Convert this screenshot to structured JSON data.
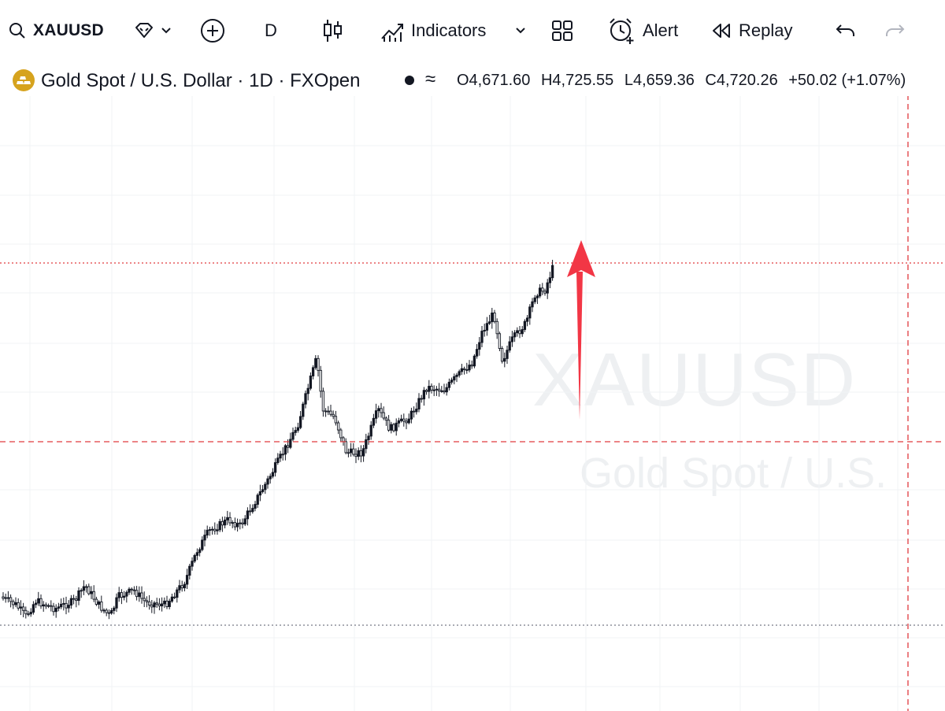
{
  "toolbar": {
    "symbol": "XAUUSD",
    "interval": "D",
    "indicators_label": "Indicators",
    "alert_label": "Alert",
    "replay_label": "Replay"
  },
  "legend": {
    "title": "Gold Spot / U.S. Dollar · 1D · FXOpen",
    "approx": "≈",
    "open": "O4,671.60",
    "high": "H4,725.55",
    "low": "L4,659.36",
    "close": "C4,720.26",
    "change": "+50.02 (+1.07%)"
  },
  "watermark": {
    "symbol": "XAUUSD",
    "name": "Gold Spot / U.S."
  },
  "colors": {
    "candle": "#131722",
    "crosshair": "#e03a3e",
    "arrow": "#f23645",
    "grid": "#f0f3f6",
    "logo": "#d6a31e"
  },
  "icons": [
    "search-icon",
    "diamond-icon",
    "chevron-down-icon",
    "plus-circle-icon",
    "candles-icon",
    "indicators-icon",
    "grid-icon",
    "alarm-icon",
    "rewind-icon",
    "undo-icon",
    "redo-icon"
  ]
}
